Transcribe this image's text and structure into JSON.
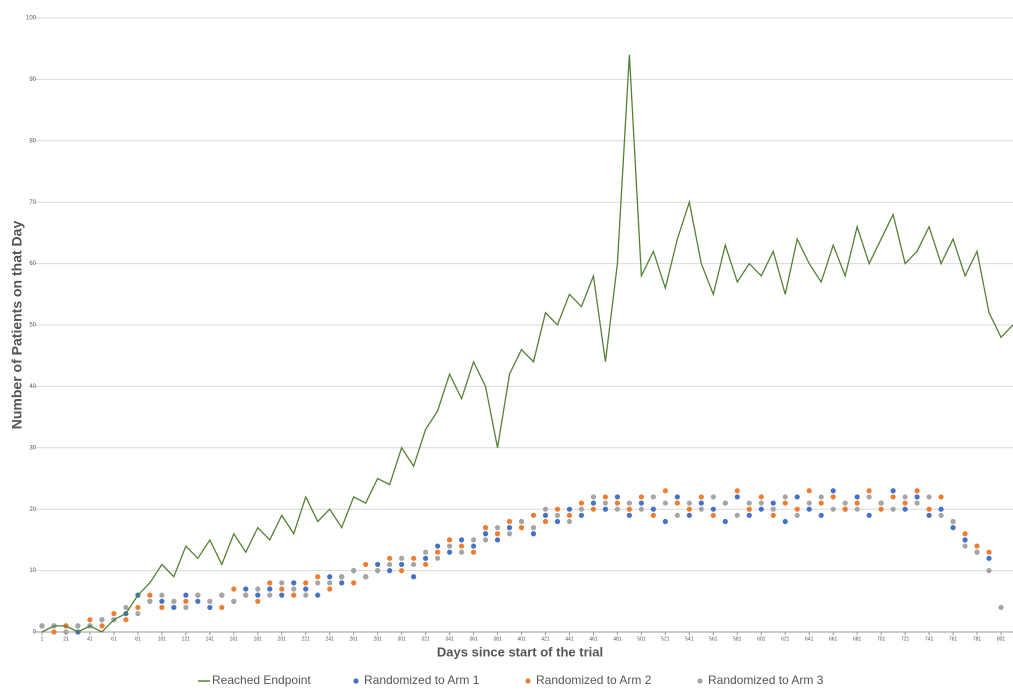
{
  "chart_data": {
    "type": "line-scatter",
    "x_label": "Days since start of the trial",
    "y_label": "Number of Patients on that Day",
    "x": [
      1,
      11,
      21,
      31,
      41,
      51,
      61,
      71,
      81,
      91,
      101,
      111,
      121,
      131,
      141,
      151,
      161,
      171,
      181,
      191,
      201,
      211,
      221,
      231,
      241,
      251,
      261,
      271,
      281,
      291,
      301,
      311,
      321,
      331,
      341,
      351,
      361,
      371,
      381,
      391,
      401,
      411,
      421,
      431,
      441,
      451,
      461,
      471,
      481,
      491,
      501,
      511,
      521,
      531,
      541,
      551,
      561,
      571,
      581,
      591,
      601,
      611,
      621,
      631,
      641,
      651,
      661,
      671,
      681,
      691,
      701,
      711,
      721,
      731,
      741,
      751,
      761,
      771,
      781,
      791,
      801,
      811
    ],
    "xlim": [
      1,
      811
    ],
    "xticks": [
      1,
      21,
      41,
      61,
      81,
      101,
      121,
      141,
      161,
      181,
      201,
      221,
      241,
      261,
      281,
      301,
      321,
      341,
      361,
      381,
      401,
      421,
      441,
      461,
      481,
      501,
      521,
      541,
      561,
      581,
      601,
      621,
      641,
      661,
      681,
      701,
      721,
      741,
      761,
      781,
      801
    ],
    "ylim": [
      0,
      100
    ],
    "yticks": [
      0,
      10,
      20,
      30,
      40,
      50,
      60,
      70,
      80,
      90,
      100
    ],
    "grid": true,
    "series": [
      {
        "name": "Reached Endpoint",
        "kind": "line",
        "color": "#548235",
        "values": [
          0,
          1,
          1,
          0,
          1,
          0,
          2,
          3,
          6,
          8,
          11,
          9,
          14,
          12,
          15,
          11,
          16,
          13,
          17,
          15,
          19,
          16,
          22,
          18,
          20,
          17,
          22,
          21,
          25,
          24,
          30,
          27,
          33,
          36,
          42,
          38,
          44,
          40,
          30,
          42,
          46,
          44,
          52,
          50,
          55,
          53,
          58,
          44,
          60,
          94,
          58,
          62,
          56,
          64,
          70,
          60,
          55,
          63,
          57,
          60,
          58,
          62,
          55,
          64,
          60,
          57,
          63,
          58,
          66,
          60,
          64,
          68,
          60,
          62,
          66,
          60,
          64,
          58,
          62,
          52,
          48,
          50
        ]
      },
      {
        "name": "Randomized to Arm 1",
        "kind": "scatter",
        "color": "#4472c4",
        "values": [
          1,
          1,
          1,
          0,
          1,
          2,
          2,
          3,
          6,
          5,
          5,
          4,
          6,
          5,
          4,
          6,
          5,
          7,
          6,
          7,
          6,
          8,
          7,
          6,
          9,
          8,
          10,
          9,
          11,
          10,
          11,
          9,
          12,
          14,
          13,
          15,
          14,
          16,
          15,
          17,
          18,
          16,
          19,
          18,
          20,
          19,
          21,
          20,
          22,
          19,
          21,
          20,
          18,
          22,
          19,
          21,
          20,
          18,
          22,
          19,
          20,
          21,
          18,
          22,
          20,
          19,
          23,
          20,
          22,
          19,
          21,
          23,
          20,
          22,
          19,
          20,
          17,
          15,
          13,
          12,
          null,
          null
        ]
      },
      {
        "name": "Randomized to Arm 2",
        "kind": "scatter",
        "color": "#ed7d31",
        "values": [
          1,
          0,
          1,
          1,
          2,
          1,
          3,
          2,
          4,
          6,
          4,
          5,
          5,
          6,
          5,
          4,
          7,
          6,
          5,
          8,
          7,
          6,
          8,
          9,
          7,
          9,
          8,
          11,
          10,
          12,
          10,
          12,
          11,
          13,
          15,
          14,
          13,
          17,
          16,
          18,
          17,
          19,
          18,
          20,
          19,
          21,
          20,
          22,
          21,
          20,
          22,
          19,
          23,
          21,
          20,
          22,
          19,
          21,
          23,
          20,
          22,
          19,
          21,
          20,
          23,
          21,
          22,
          20,
          21,
          23,
          20,
          22,
          21,
          23,
          20,
          22,
          18,
          16,
          14,
          13,
          null,
          null
        ]
      },
      {
        "name": "Randomized to Arm 3",
        "kind": "scatter",
        "color": "#a5a5a5",
        "values": [
          1,
          1,
          0,
          1,
          1,
          2,
          2,
          4,
          3,
          5,
          6,
          5,
          4,
          6,
          5,
          6,
          5,
          6,
          7,
          6,
          8,
          7,
          6,
          8,
          8,
          9,
          10,
          9,
          10,
          11,
          12,
          11,
          13,
          12,
          14,
          13,
          15,
          15,
          17,
          16,
          18,
          17,
          20,
          19,
          18,
          20,
          22,
          21,
          20,
          21,
          20,
          22,
          21,
          19,
          21,
          20,
          22,
          21,
          19,
          21,
          21,
          20,
          22,
          19,
          21,
          22,
          20,
          21,
          20,
          22,
          21,
          20,
          22,
          21,
          22,
          19,
          18,
          14,
          13,
          10,
          4,
          null
        ]
      }
    ]
  }
}
